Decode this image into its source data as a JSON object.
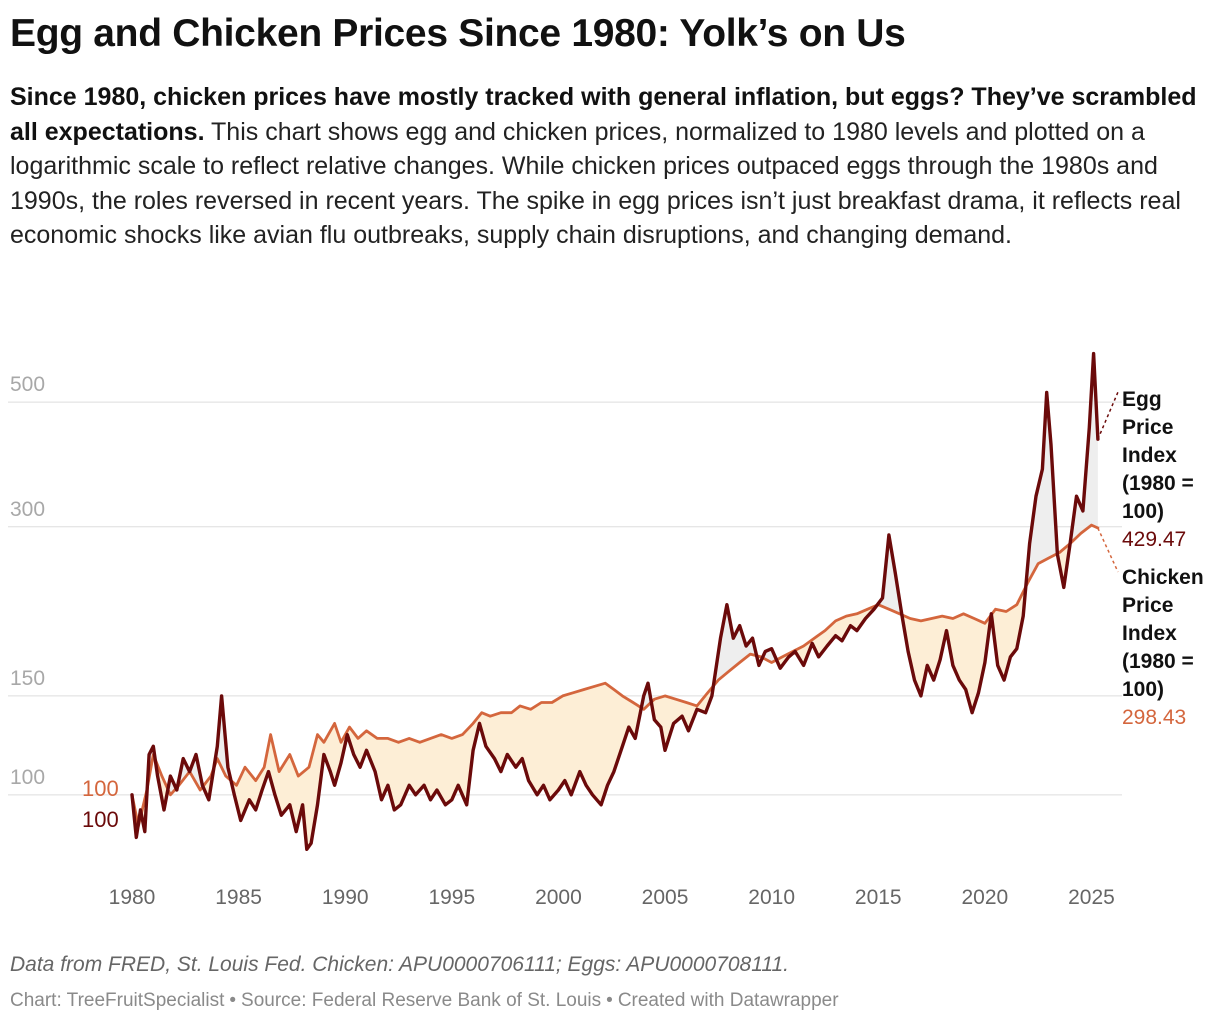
{
  "title": "Egg and Chicken Prices Since 1980: Yolk’s on Us",
  "description": {
    "lead": "Since 1980, chicken prices have mostly tracked with general inflation, but eggs? They’ve scrambled all expectations.",
    "body": "This chart shows egg and chicken prices, normalized to 1980 levels and plotted on a logarithmic scale to reflect relative changes. While chicken prices outpaced eggs through the 1980s and 1990s, the roles reversed in recent years. The spike in egg prices isn’t just breakfast drama, it reflects real economic shocks like avian flu outbreaks, supply chain disruptions, and changing demand."
  },
  "notes": "Data from FRED, St. Louis Fed. Chicken: APU0000706111; Eggs: APU0000708111.",
  "credit": {
    "chart": "Chart: TreeFruitSpecialist",
    "source": "Source: Federal Reserve Bank of St. Louis",
    "tool": "Created with Datawrapper",
    "separator": "•"
  },
  "colors": {
    "egg": "#6b0a0a",
    "chicken": "#d4663d",
    "fill_chicken_above": "#fdeed6",
    "fill_egg_above": "#eeeeee",
    "grid": "#dddddd",
    "tick_text": "#a8a8a8",
    "x_tick_text": "#666666"
  },
  "chart_data": {
    "type": "line",
    "scale": "log",
    "xlim": [
      1980,
      2025.4
    ],
    "ylim": [
      72,
      700
    ],
    "y_ticks": [
      100,
      150,
      300,
      500
    ],
    "x_ticks": [
      1980,
      1985,
      1990,
      1995,
      2000,
      2005,
      2010,
      2015,
      2020,
      2025
    ],
    "start_labels": {
      "chicken": "100",
      "egg": "100"
    },
    "series": [
      {
        "key": "chicken",
        "name": "Chicken Price Index (1980 = 100)",
        "last_value_label": "298.43",
        "points": [
          [
            1980,
            100
          ],
          [
            1980.3,
            88
          ],
          [
            1980.7,
            102
          ],
          [
            1981.0,
            118
          ],
          [
            1981.4,
            108
          ],
          [
            1981.8,
            100
          ],
          [
            1982.2,
            104
          ],
          [
            1982.7,
            110
          ],
          [
            1983.2,
            102
          ],
          [
            1983.7,
            108
          ],
          [
            1984.0,
            116
          ],
          [
            1984.4,
            108
          ],
          [
            1984.9,
            104
          ],
          [
            1985.3,
            112
          ],
          [
            1985.8,
            106
          ],
          [
            1986.2,
            112
          ],
          [
            1986.5,
            128
          ],
          [
            1986.9,
            110
          ],
          [
            1987.4,
            118
          ],
          [
            1987.8,
            108
          ],
          [
            1988.3,
            112
          ],
          [
            1988.7,
            128
          ],
          [
            1989.0,
            124
          ],
          [
            1989.5,
            134
          ],
          [
            1989.8,
            124
          ],
          [
            1990.2,
            132
          ],
          [
            1990.6,
            126
          ],
          [
            1991.0,
            130
          ],
          [
            1991.5,
            126
          ],
          [
            1992.0,
            126
          ],
          [
            1992.5,
            124
          ],
          [
            1993.0,
            126
          ],
          [
            1993.5,
            124
          ],
          [
            1994.0,
            126
          ],
          [
            1994.5,
            128
          ],
          [
            1995.0,
            126
          ],
          [
            1995.5,
            128
          ],
          [
            1996.0,
            134
          ],
          [
            1996.4,
            140
          ],
          [
            1996.8,
            138
          ],
          [
            1997.3,
            140
          ],
          [
            1997.8,
            140
          ],
          [
            1998.2,
            144
          ],
          [
            1998.7,
            142
          ],
          [
            1999.2,
            146
          ],
          [
            1999.7,
            146
          ],
          [
            2000.2,
            150
          ],
          [
            2000.7,
            152
          ],
          [
            2001.2,
            154
          ],
          [
            2001.7,
            156
          ],
          [
            2002.2,
            158
          ],
          [
            2002.6,
            154
          ],
          [
            2003.0,
            150
          ],
          [
            2003.5,
            146
          ],
          [
            2004.0,
            142
          ],
          [
            2004.5,
            148
          ],
          [
            2005.0,
            150
          ],
          [
            2005.5,
            148
          ],
          [
            2006.0,
            146
          ],
          [
            2006.5,
            144
          ],
          [
            2007.0,
            152
          ],
          [
            2007.5,
            160
          ],
          [
            2008.0,
            166
          ],
          [
            2008.5,
            172
          ],
          [
            2009.0,
            178
          ],
          [
            2009.5,
            176
          ],
          [
            2010.0,
            172
          ],
          [
            2010.5,
            176
          ],
          [
            2011.0,
            180
          ],
          [
            2011.5,
            184
          ],
          [
            2012.0,
            190
          ],
          [
            2012.5,
            196
          ],
          [
            2013.0,
            204
          ],
          [
            2013.5,
            208
          ],
          [
            2014.0,
            210
          ],
          [
            2014.5,
            214
          ],
          [
            2015.0,
            218
          ],
          [
            2015.5,
            214
          ],
          [
            2016.0,
            210
          ],
          [
            2016.5,
            206
          ],
          [
            2017.0,
            204
          ],
          [
            2017.5,
            206
          ],
          [
            2018.0,
            208
          ],
          [
            2018.5,
            206
          ],
          [
            2019.0,
            210
          ],
          [
            2019.5,
            206
          ],
          [
            2020.0,
            202
          ],
          [
            2020.5,
            214
          ],
          [
            2021.0,
            212
          ],
          [
            2021.5,
            218
          ],
          [
            2022.0,
            238
          ],
          [
            2022.5,
            258
          ],
          [
            2023.0,
            264
          ],
          [
            2023.5,
            270
          ],
          [
            2024.0,
            280
          ],
          [
            2024.5,
            292
          ],
          [
            2025.0,
            302
          ],
          [
            2025.3,
            298.43
          ]
        ]
      },
      {
        "key": "egg",
        "name": "Egg Price Index (1980 = 100)",
        "last_value_label": "429.47",
        "points": [
          [
            1980,
            100
          ],
          [
            1980.2,
            84
          ],
          [
            1980.4,
            94
          ],
          [
            1980.6,
            86
          ],
          [
            1980.8,
            118
          ],
          [
            1981.0,
            122
          ],
          [
            1981.2,
            108
          ],
          [
            1981.5,
            94
          ],
          [
            1981.8,
            108
          ],
          [
            1982.1,
            102
          ],
          [
            1982.4,
            116
          ],
          [
            1982.7,
            110
          ],
          [
            1983.0,
            118
          ],
          [
            1983.3,
            104
          ],
          [
            1983.6,
            98
          ],
          [
            1984.0,
            122
          ],
          [
            1984.2,
            150
          ],
          [
            1984.5,
            112
          ],
          [
            1984.8,
            100
          ],
          [
            1985.1,
            90
          ],
          [
            1985.5,
            98
          ],
          [
            1985.8,
            94
          ],
          [
            1986.1,
            102
          ],
          [
            1986.4,
            110
          ],
          [
            1986.7,
            100
          ],
          [
            1987.0,
            92
          ],
          [
            1987.4,
            96
          ],
          [
            1987.7,
            86
          ],
          [
            1988.0,
            96
          ],
          [
            1988.2,
            80
          ],
          [
            1988.4,
            82
          ],
          [
            1988.7,
            96
          ],
          [
            1989.0,
            118
          ],
          [
            1989.3,
            110
          ],
          [
            1989.5,
            104
          ],
          [
            1989.8,
            114
          ],
          [
            1990.1,
            128
          ],
          [
            1990.4,
            118
          ],
          [
            1990.7,
            112
          ],
          [
            1991.0,
            120
          ],
          [
            1991.4,
            110
          ],
          [
            1991.7,
            98
          ],
          [
            1992.0,
            104
          ],
          [
            1992.3,
            94
          ],
          [
            1992.6,
            96
          ],
          [
            1993.0,
            104
          ],
          [
            1993.3,
            100
          ],
          [
            1993.7,
            104
          ],
          [
            1994.0,
            98
          ],
          [
            1994.3,
            102
          ],
          [
            1994.7,
            96
          ],
          [
            1995.0,
            98
          ],
          [
            1995.3,
            104
          ],
          [
            1995.7,
            96
          ],
          [
            1996.0,
            120
          ],
          [
            1996.3,
            134
          ],
          [
            1996.6,
            122
          ],
          [
            1997.0,
            116
          ],
          [
            1997.3,
            110
          ],
          [
            1997.6,
            118
          ],
          [
            1998.0,
            112
          ],
          [
            1998.3,
            116
          ],
          [
            1998.6,
            106
          ],
          [
            1999.0,
            100
          ],
          [
            1999.3,
            104
          ],
          [
            1999.6,
            98
          ],
          [
            2000.0,
            102
          ],
          [
            2000.3,
            106
          ],
          [
            2000.6,
            100
          ],
          [
            2001.0,
            110
          ],
          [
            2001.3,
            104
          ],
          [
            2001.6,
            100
          ],
          [
            2002.0,
            96
          ],
          [
            2002.3,
            104
          ],
          [
            2002.6,
            110
          ],
          [
            2003.0,
            122
          ],
          [
            2003.3,
            132
          ],
          [
            2003.6,
            126
          ],
          [
            2004.0,
            150
          ],
          [
            2004.2,
            158
          ],
          [
            2004.5,
            136
          ],
          [
            2004.8,
            132
          ],
          [
            2005.0,
            120
          ],
          [
            2005.4,
            134
          ],
          [
            2005.8,
            138
          ],
          [
            2006.1,
            130
          ],
          [
            2006.5,
            142
          ],
          [
            2006.9,
            140
          ],
          [
            2007.2,
            150
          ],
          [
            2007.6,
            190
          ],
          [
            2007.9,
            218
          ],
          [
            2008.2,
            190
          ],
          [
            2008.5,
            200
          ],
          [
            2008.8,
            184
          ],
          [
            2009.1,
            190
          ],
          [
            2009.4,
            170
          ],
          [
            2009.7,
            180
          ],
          [
            2010.0,
            182
          ],
          [
            2010.4,
            168
          ],
          [
            2010.8,
            176
          ],
          [
            2011.1,
            180
          ],
          [
            2011.5,
            170
          ],
          [
            2011.9,
            186
          ],
          [
            2012.2,
            176
          ],
          [
            2012.6,
            184
          ],
          [
            2013.0,
            192
          ],
          [
            2013.3,
            188
          ],
          [
            2013.7,
            200
          ],
          [
            2014.0,
            196
          ],
          [
            2014.4,
            206
          ],
          [
            2014.8,
            214
          ],
          [
            2015.2,
            224
          ],
          [
            2015.5,
            290
          ],
          [
            2015.8,
            248
          ],
          [
            2016.1,
            210
          ],
          [
            2016.4,
            180
          ],
          [
            2016.7,
            160
          ],
          [
            2017.0,
            150
          ],
          [
            2017.3,
            170
          ],
          [
            2017.6,
            160
          ],
          [
            2017.9,
            174
          ],
          [
            2018.2,
            196
          ],
          [
            2018.5,
            170
          ],
          [
            2018.8,
            160
          ],
          [
            2019.1,
            154
          ],
          [
            2019.4,
            140
          ],
          [
            2019.7,
            152
          ],
          [
            2020.0,
            172
          ],
          [
            2020.3,
            210
          ],
          [
            2020.6,
            170
          ],
          [
            2020.9,
            160
          ],
          [
            2021.2,
            176
          ],
          [
            2021.5,
            182
          ],
          [
            2021.8,
            208
          ],
          [
            2022.1,
            280
          ],
          [
            2022.4,
            340
          ],
          [
            2022.7,
            380
          ],
          [
            2022.9,
            520
          ],
          [
            2023.1,
            420
          ],
          [
            2023.4,
            268
          ],
          [
            2023.7,
            234
          ],
          [
            2024.0,
            280
          ],
          [
            2024.3,
            340
          ],
          [
            2024.6,
            320
          ],
          [
            2024.9,
            450
          ],
          [
            2025.1,
            610
          ],
          [
            2025.3,
            429.47
          ]
        ]
      }
    ]
  }
}
